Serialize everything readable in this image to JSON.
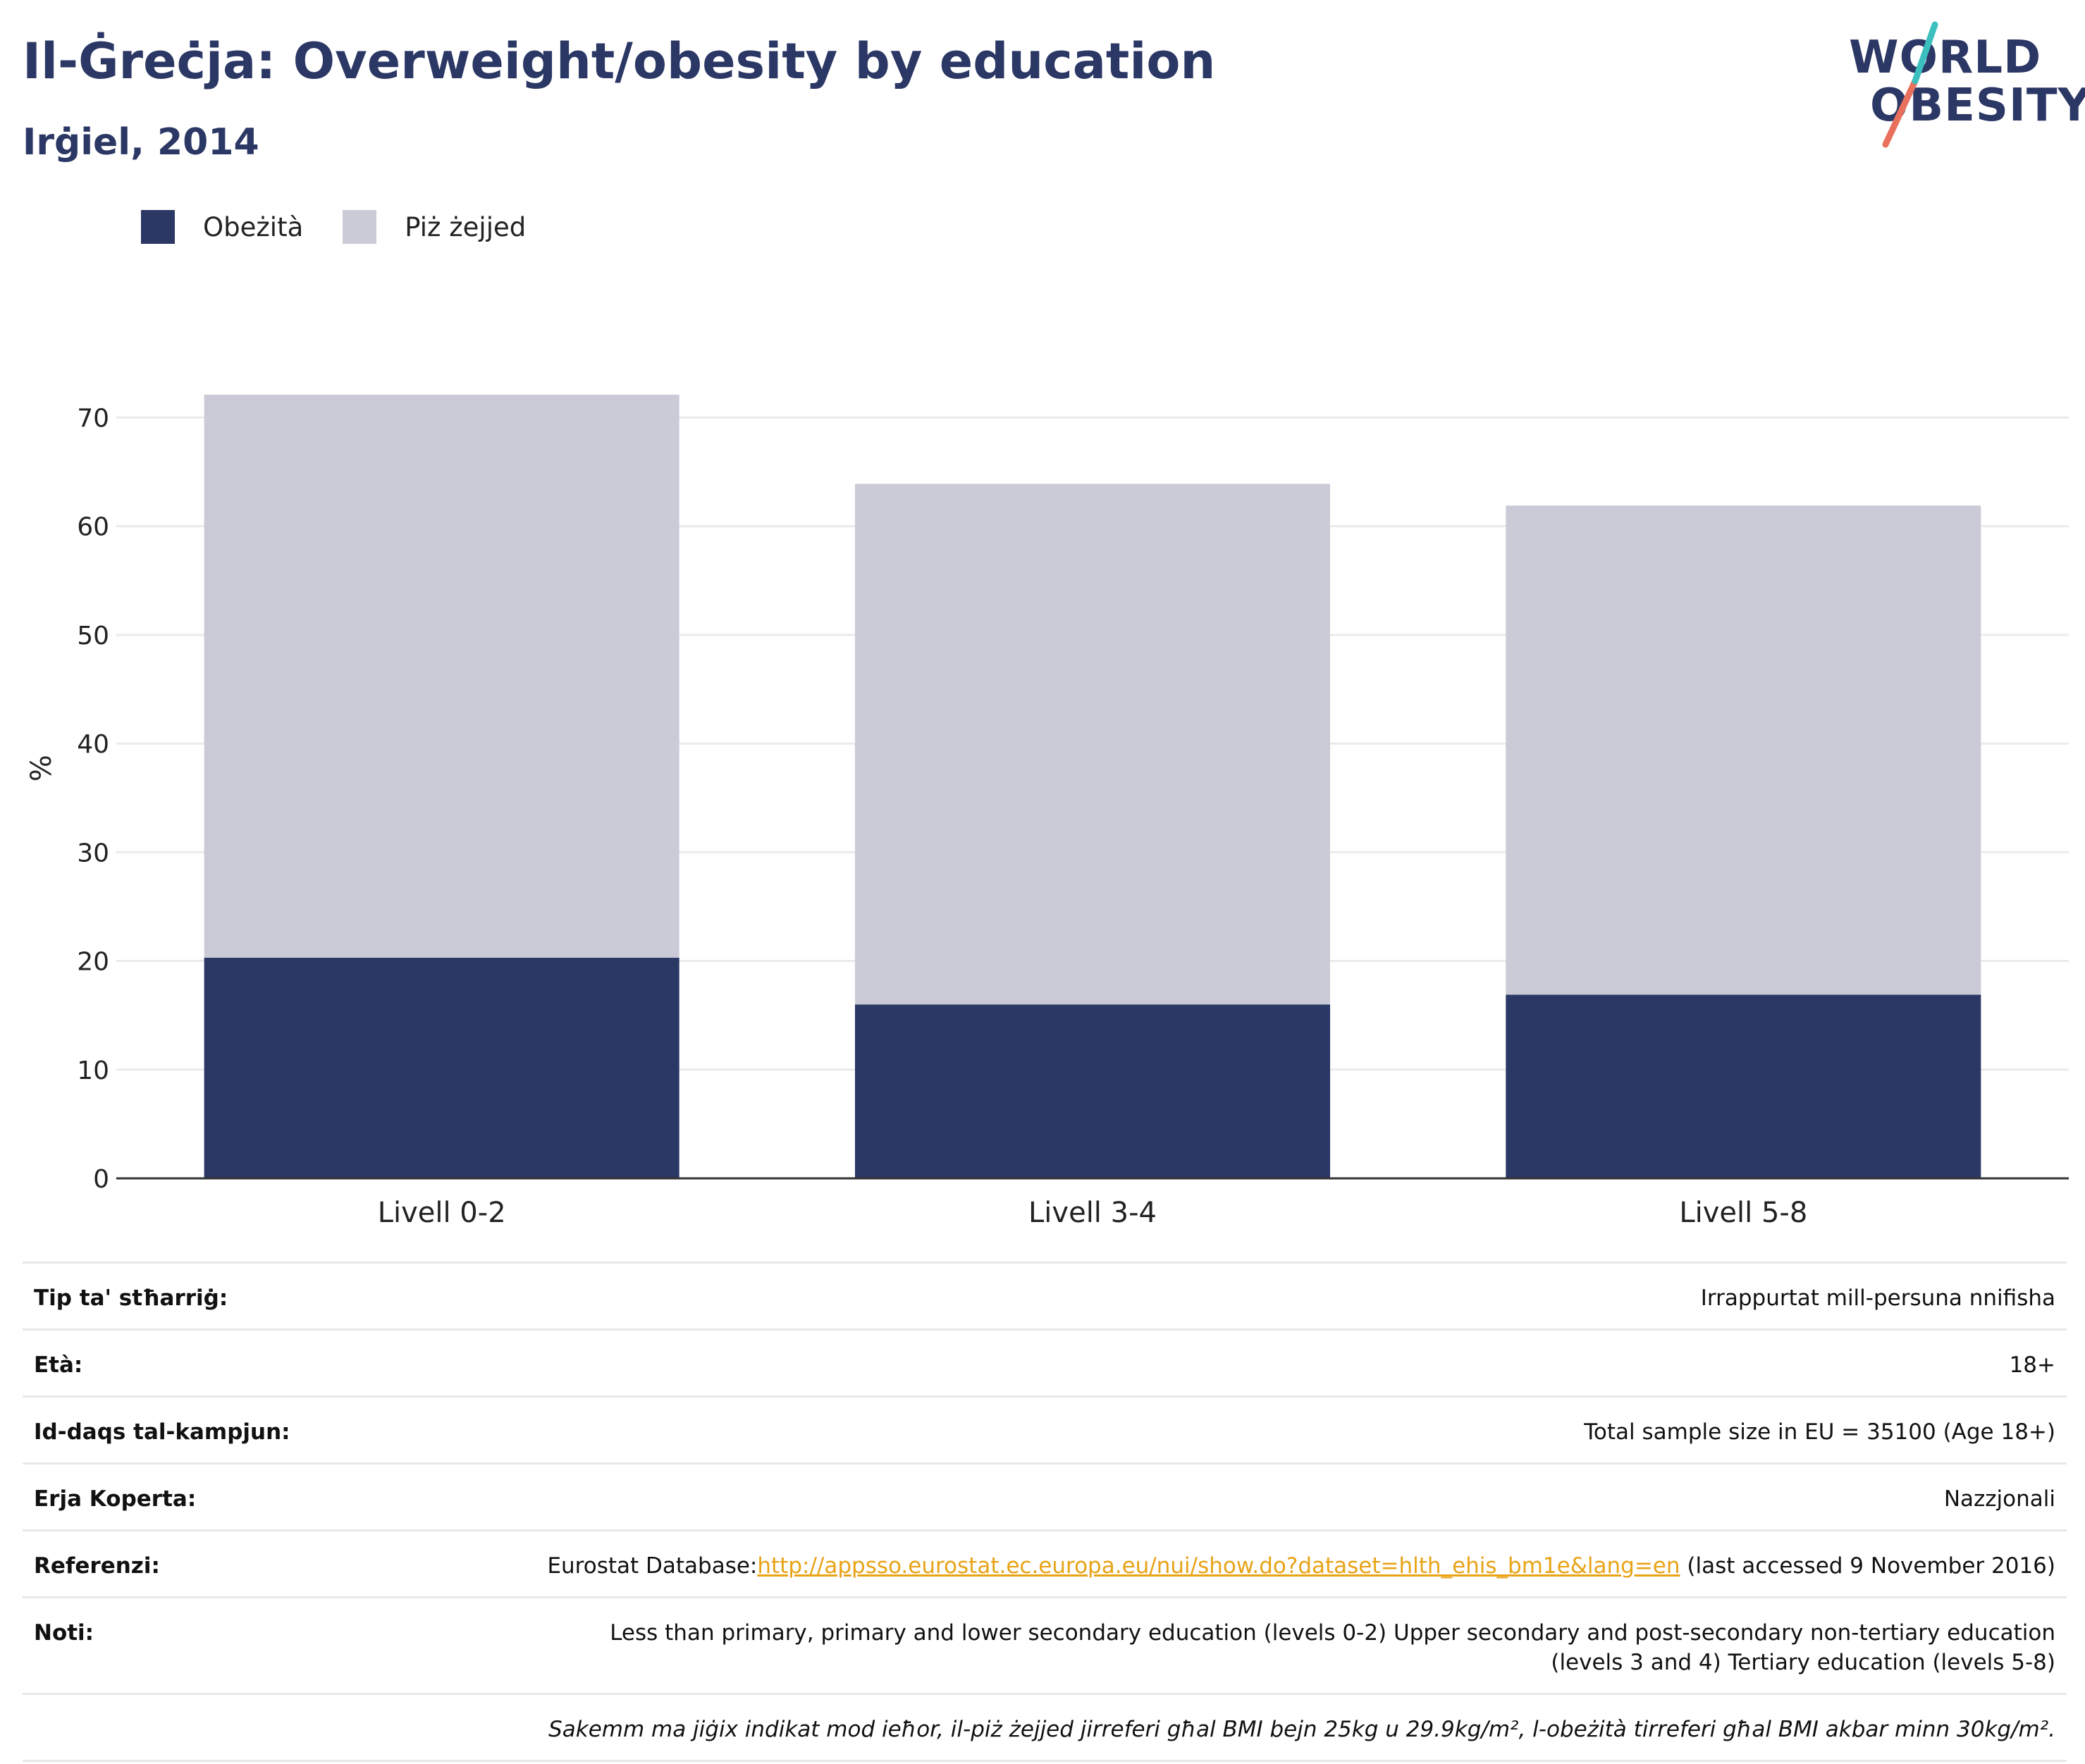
{
  "header": {
    "title": "Il-Ġreċja: Overweight/obesity by education",
    "subtitle": "Irġiel, 2014"
  },
  "logo": {
    "line1": "WORLD",
    "line2": "OBESITY",
    "accent_colors": [
      "#3cbfbf",
      "#e8705c"
    ]
  },
  "colors": {
    "obesity": "#2b3764",
    "overweight": "#cacbd7",
    "link": "#e8a317",
    "heading": "#2b3764"
  },
  "legend": [
    {
      "label": "Obeżità",
      "color": "#2b3764"
    },
    {
      "label": "Piż żejjed",
      "color": "#cacbd7"
    }
  ],
  "chart_data": {
    "type": "bar",
    "stacked": true,
    "categories": [
      "Livell 0-2",
      "Livell 3-4",
      "Livell 5-8"
    ],
    "series": [
      {
        "name": "Obeżità",
        "values": [
          20.3,
          16.0,
          16.9
        ]
      },
      {
        "name": "Piż żejjed",
        "values": [
          51.8,
          47.9,
          45.0
        ]
      }
    ],
    "totals": [
      72.1,
      63.9,
      61.9
    ],
    "ylabel": "%",
    "ylim": [
      0,
      72.1
    ],
    "yticks": [
      0,
      10,
      20,
      30,
      40,
      50,
      60,
      70
    ],
    "grid": true,
    "legend_position": "top-left"
  },
  "info": {
    "rows": [
      {
        "label": "Tip ta' stħarriġ:",
        "value": "Irrappurtat mill-persuna nnifisha"
      },
      {
        "label": "Età:",
        "value": "18+"
      },
      {
        "label": "Id-daqs tal-kampjun:",
        "value": "Total sample size in EU = 35100 (Age 18+)"
      },
      {
        "label": "Erja Koperta:",
        "value": "Nazzjonali"
      }
    ],
    "references": {
      "label": "Referenzi:",
      "prefix": "Eurostat Database:",
      "link": "http://appsso.eurostat.ec.europa.eu/nui/show.do?dataset=hlth_ehis_bm1e&lang=en",
      "suffix": " (last accessed 9 November 2016)"
    },
    "notes": {
      "label": "Noti:",
      "value": "Less than primary, primary and lower secondary education (levels 0-2) Upper secondary and post-secondary non-tertiary education (levels 3 and 4) Tertiary education (levels 5-8)"
    },
    "footnote": "Sakemm ma jiġix indikat mod ieħor, il-piż żejjed jirreferi għal BMI bejn 25kg u 29.9kg/m², l-obeżità tirreferi għal BMI akbar minn 30kg/m²."
  }
}
